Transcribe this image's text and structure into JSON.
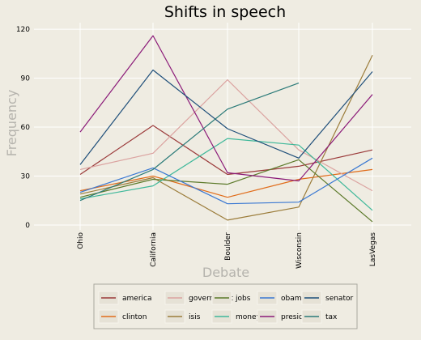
{
  "chart_data": {
    "type": "line",
    "title": "Shifts in speech",
    "xlabel": "Debate",
    "ylabel": "Frequency",
    "categories": [
      "Ohio",
      "California",
      "Boulder",
      "Wisconsin",
      "LasVegas"
    ],
    "yticks": [
      0,
      30,
      60,
      90,
      120
    ],
    "ylim": [
      -3,
      124
    ],
    "grid": true,
    "legend_position": "bottom",
    "series": [
      {
        "name": "america",
        "color": "#9b3a3a",
        "values": [
          31,
          61,
          31,
          36,
          46
        ]
      },
      {
        "name": "clinton",
        "color": "#e06c1a",
        "values": [
          21,
          30,
          17,
          28,
          34
        ]
      },
      {
        "name": "government",
        "color": "#dba3a0",
        "values": [
          34,
          44,
          89,
          46,
          21
        ]
      },
      {
        "name": "isis",
        "color": "#9b7c3a",
        "values": [
          19,
          29,
          3,
          11,
          104
        ]
      },
      {
        "name": "jobs",
        "color": "#5c7a2a",
        "values": [
          17,
          28,
          25,
          40,
          2
        ]
      },
      {
        "name": "money",
        "color": "#3fb89a",
        "values": [
          16,
          24,
          53,
          49,
          9
        ]
      },
      {
        "name": "obama",
        "color": "#3a78d2",
        "values": [
          20,
          35,
          13,
          14,
          41
        ]
      },
      {
        "name": "president",
        "color": "#8b1a78",
        "values": [
          57,
          116,
          32,
          27,
          80
        ]
      },
      {
        "name": "senator",
        "color": "#1f4f7a",
        "values": [
          37,
          95,
          59,
          41,
          94
        ]
      },
      {
        "name": "tax",
        "color": "#2a7a78",
        "values": [
          15,
          34,
          71,
          87,
          null
        ]
      }
    ]
  }
}
